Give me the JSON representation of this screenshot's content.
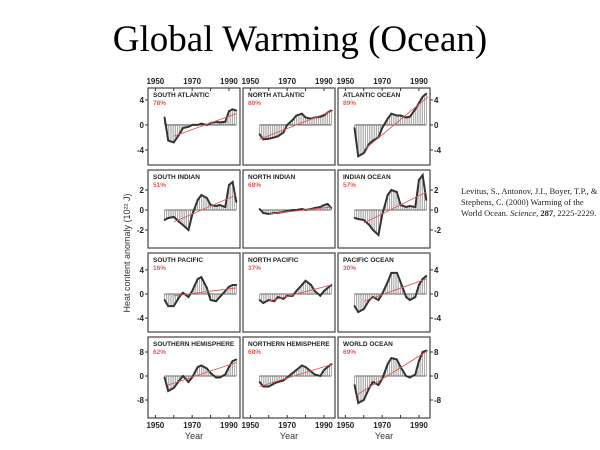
{
  "slide": {
    "title": "Global Warming (Ocean)"
  },
  "citation": {
    "authors": "Levitus, S., Antonov, J.I., Boyer, T.P., & Stephens, C. (2000)",
    "article": "Warming of the World Ocean.",
    "journal": "Science,",
    "volume": "287",
    "pages": "2225-2229."
  },
  "colors": {
    "trend": "#e25858",
    "data": "#333333",
    "bars": "#888888"
  },
  "chart_data": {
    "type": "line",
    "ylabel": "Heat content anomaly (10²² J)",
    "xlabel": "Year",
    "xlim": [
      1946,
      1996
    ],
    "xticks": [
      1950,
      1970,
      1990
    ],
    "x": [
      1955,
      1957,
      1960,
      1963,
      1965,
      1968,
      1970,
      1973,
      1975,
      1978,
      1980,
      1983,
      1985,
      1988,
      1990,
      1992,
      1994
    ],
    "rows": [
      {
        "ylim": [
          -6.4,
          5.9
        ],
        "yticks": [
          -4,
          0,
          4
        ]
      },
      {
        "ylim": [
          -3.8,
          4.0
        ],
        "yticks": [
          -2,
          0,
          2
        ]
      },
      {
        "ylim": [
          -6.3,
          6.8
        ],
        "yticks": [
          -4,
          0,
          4
        ]
      },
      {
        "ylim": [
          -14,
          13
        ],
        "yticks": [
          -8,
          0,
          8
        ]
      }
    ],
    "panels": [
      {
        "name": "SOUTH ATLANTIC",
        "pct": "78%",
        "values": [
          1.2,
          -2.5,
          -2.8,
          -1.5,
          -0.5,
          -0.3,
          0,
          0,
          0.2,
          0,
          0.3,
          0.5,
          0.4,
          0.5,
          2.2,
          2.5,
          2.3
        ],
        "trend": [
          [
            1960,
            -1.8
          ],
          [
            1994,
            1.8
          ]
        ]
      },
      {
        "name": "NORTH ATLANTIC",
        "pct": "80%",
        "values": [
          -1.5,
          -2.3,
          -2.2,
          -2,
          -1.8,
          -1.2,
          0,
          0.8,
          1.5,
          1.8,
          1.2,
          1,
          1.2,
          1.3,
          1.5,
          2,
          2.3
        ],
        "trend": [
          [
            1955,
            -2.3
          ],
          [
            1995,
            2.3
          ]
        ]
      },
      {
        "name": "ATLANTIC OCEAN",
        "pct": "89%",
        "values": [
          -0.5,
          -5,
          -4.5,
          -3,
          -2.5,
          -2,
          -0.5,
          1,
          1.8,
          1.5,
          1.5,
          1.2,
          1.3,
          2.5,
          3.5,
          4.5,
          5
        ],
        "trend": [
          [
            1960,
            -4
          ],
          [
            1995,
            4.5
          ]
        ]
      },
      {
        "name": "SOUTH INDIAN",
        "pct": "51%",
        "values": [
          -1,
          -0.8,
          -0.7,
          -1.2,
          -1.5,
          -2,
          -0.5,
          1,
          1.5,
          1.2,
          0.5,
          0.4,
          0.5,
          0.3,
          2.5,
          2.8,
          0.8
        ],
        "trend": [
          [
            1960,
            -1.2
          ],
          [
            1994,
            1.5
          ]
        ]
      },
      {
        "name": "NORTH INDIAN",
        "pct": "68%",
        "values": [
          0.1,
          -0.3,
          -0.4,
          -0.3,
          -0.3,
          -0.2,
          -0.1,
          0,
          0,
          0.1,
          0,
          0.1,
          0.2,
          0.3,
          0.5,
          0.6,
          0.2
        ],
        "trend": [
          [
            1960,
            -0.4
          ],
          [
            1994,
            0.3
          ]
        ]
      },
      {
        "name": "INDIAN OCEAN",
        "pct": "57%",
        "values": [
          -0.8,
          -0.9,
          -1,
          -1.5,
          -2,
          -2.5,
          -0.5,
          1.5,
          2,
          1.8,
          0.5,
          0.3,
          0.4,
          0.3,
          3,
          3.5,
          1
        ],
        "trend": [
          [
            1960,
            -1.3
          ],
          [
            1994,
            1.8
          ]
        ]
      },
      {
        "name": "SOUTH PACIFIC",
        "pct": "16%",
        "values": [
          -1,
          -2,
          -2,
          -0.5,
          0.2,
          -0.5,
          0.5,
          2.5,
          2.8,
          1,
          -1,
          -1.2,
          -0.5,
          0.5,
          1.2,
          1.5,
          1.5
        ],
        "trend": [
          [
            1960,
            -0.3
          ],
          [
            1994,
            1
          ]
        ]
      },
      {
        "name": "NORTH PACIFIC",
        "pct": "37%",
        "values": [
          -1,
          -1.5,
          -1,
          -1.2,
          -0.5,
          -0.8,
          -0.3,
          -0.3,
          0.5,
          1.5,
          2.2,
          1.5,
          0.5,
          -0.3,
          0.5,
          1,
          1.5
        ],
        "trend": [
          [
            1960,
            -1.2
          ],
          [
            1994,
            1.5
          ]
        ]
      },
      {
        "name": "PACIFIC OCEAN",
        "pct": "30%",
        "values": [
          -2,
          -3,
          -2.5,
          -1,
          -0.5,
          -1,
          0,
          2,
          3.5,
          3.5,
          2,
          -0.5,
          -1,
          -0.5,
          1.5,
          2.5,
          3
        ],
        "trend": [
          [
            1960,
            -1.2
          ],
          [
            1994,
            2.5
          ]
        ]
      },
      {
        "name": "SOUTHERN HEMISPHERE",
        "pct": "62%",
        "values": [
          -0.5,
          -5,
          -4,
          -1.5,
          0,
          -2,
          -0.5,
          3,
          3.5,
          2.5,
          1,
          -0.5,
          -0.5,
          0.5,
          3,
          5,
          5.5
        ],
        "trend": [
          [
            1957,
            -3
          ],
          [
            1994,
            4.5
          ]
        ]
      },
      {
        "name": "NORTHERN HEMISPHERE",
        "pct": "68%",
        "values": [
          -2,
          -3.5,
          -3.5,
          -2.5,
          -2,
          -1.5,
          -0.5,
          1,
          2,
          3.5,
          3,
          1.5,
          0.5,
          0,
          2,
          3,
          4
        ],
        "trend": [
          [
            1955,
            -3.5
          ],
          [
            1995,
            4
          ]
        ]
      },
      {
        "name": "WORLD OCEAN",
        "pct": "69%",
        "values": [
          -3,
          -9,
          -8,
          -4,
          -2,
          -3,
          -1,
          4,
          6,
          5.5,
          3,
          0,
          -0.5,
          0.5,
          5,
          8,
          8.5
        ],
        "trend": [
          [
            1957,
            -6
          ],
          [
            1995,
            8.5
          ]
        ]
      }
    ]
  }
}
